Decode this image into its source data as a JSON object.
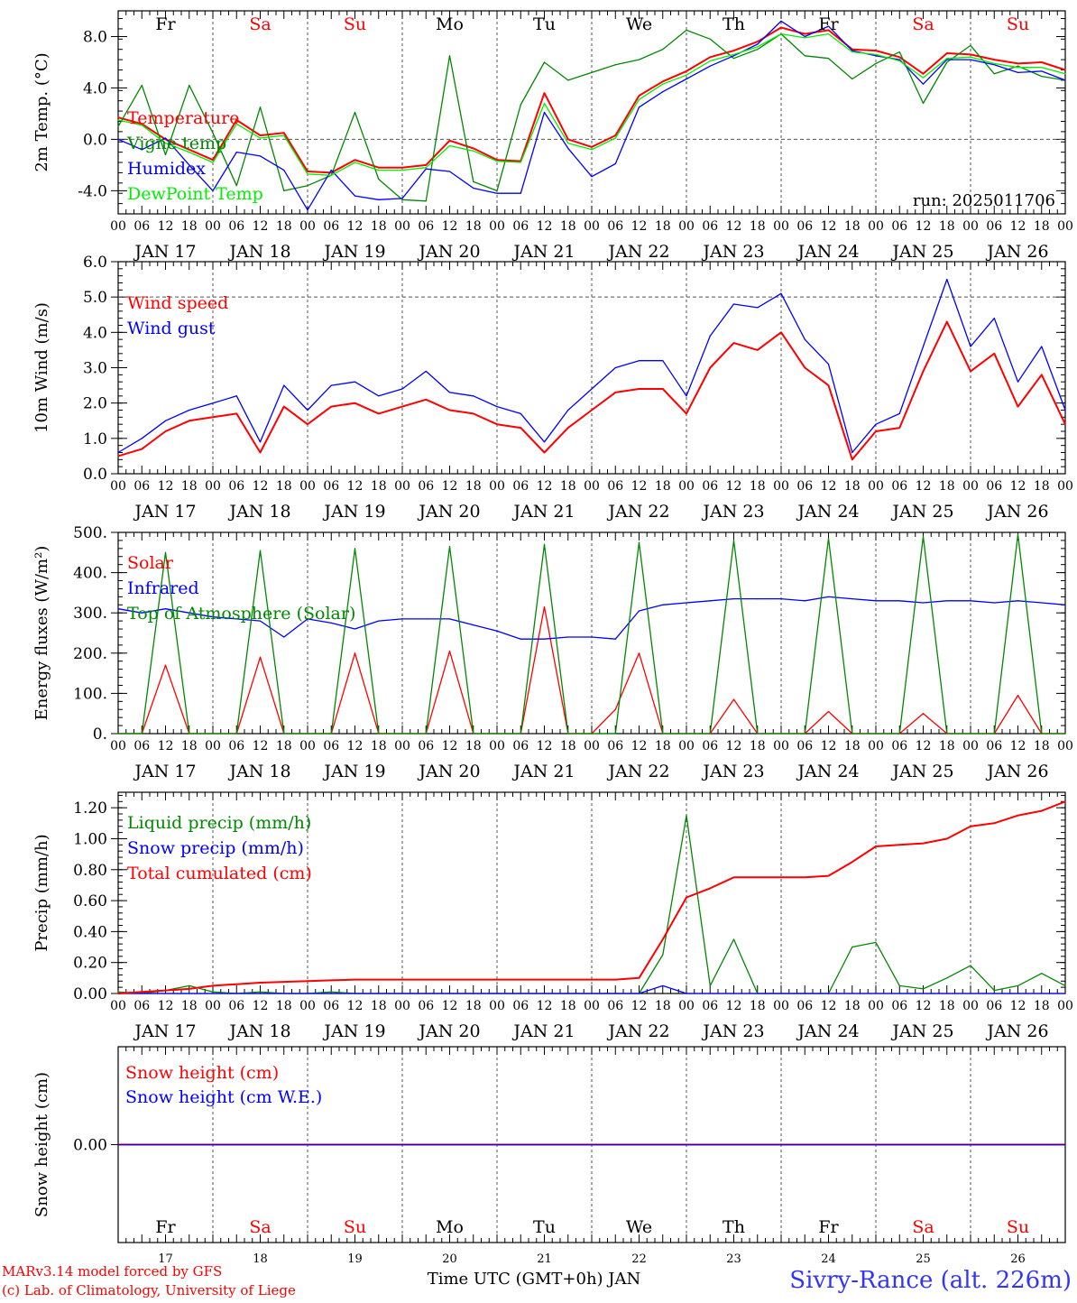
{
  "colors": {
    "red": "#ff0000",
    "green": "#008800",
    "blue": "#0000ff",
    "lime": "#00ee00",
    "grey": "#555555",
    "site": "#3333ff"
  },
  "weekdays": [
    "Fr",
    "Sa",
    "Su",
    "Mo",
    "Tu",
    "We",
    "Th",
    "Fr",
    "Sa",
    "Su"
  ],
  "weekday_red": [
    false,
    true,
    true,
    false,
    false,
    false,
    false,
    false,
    true,
    true
  ],
  "day_labels": [
    "JAN 17",
    "JAN 18",
    "JAN 19",
    "JAN 20",
    "JAN 21",
    "JAN 22",
    "JAN 23",
    "JAN 24",
    "JAN 25",
    "JAN 26"
  ],
  "day_numbers": [
    "17",
    "18",
    "19",
    "20",
    "21",
    "22",
    "23",
    "24",
    "25",
    "26"
  ],
  "hour_labels": [
    "00",
    "06",
    "12",
    "18"
  ],
  "hour_end_label": "00",
  "footer": {
    "model_line": "MARv3.14 model forced by GFS",
    "lab_line": "(c) Lab. of Climatology, University of Liege",
    "xlabel": "Time UTC (GMT+0h) JAN",
    "site": "Sivry-Rance (alt. 226m)"
  },
  "chart_data": [
    {
      "type": "line",
      "ylabel": "2m Temp. (°C)",
      "yticks": [
        "-4.0",
        "0.0",
        "4.0",
        "8.0"
      ],
      "ylim": [
        -5.8,
        10.0
      ],
      "dashed_ref": [
        0.0
      ],
      "run_label": "run: 2025011706",
      "x_hours": [
        0,
        6,
        12,
        18,
        24,
        30,
        36,
        42,
        48,
        54,
        60,
        66,
        72,
        78,
        84,
        90,
        96,
        102,
        108,
        114,
        120,
        126,
        132,
        138,
        144,
        150,
        156,
        162,
        168,
        174,
        180,
        186,
        192,
        198,
        204,
        210,
        216,
        222,
        228,
        234,
        240
      ],
      "series": [
        {
          "name": "Temperature",
          "color": "red",
          "values": [
            1.7,
            1.2,
            0.0,
            -0.8,
            -1.6,
            1.5,
            0.3,
            0.5,
            -2.5,
            -2.6,
            -1.6,
            -2.2,
            -2.2,
            -2.0,
            -0.1,
            -0.7,
            -1.6,
            -1.7,
            3.6,
            0.0,
            -0.6,
            0.3,
            3.4,
            4.5,
            5.3,
            6.4,
            6.9,
            7.6,
            8.7,
            8.2,
            8.5,
            7.0,
            6.9,
            6.4,
            5.1,
            6.7,
            6.6,
            6.2,
            5.9,
            6.0,
            5.4
          ]
        },
        {
          "name": "Vigne temp",
          "color": "green",
          "values": [
            1.0,
            4.2,
            -1.2,
            4.2,
            0.5,
            -3.6,
            2.5,
            -4.0,
            -3.6,
            -2.8,
            2.1,
            -3.1,
            -4.7,
            -4.8,
            6.5,
            -3.3,
            -4.0,
            2.7,
            6.0,
            4.6,
            5.2,
            5.8,
            6.2,
            7.0,
            8.5,
            7.8,
            6.3,
            7.0,
            8.2,
            6.5,
            6.3,
            4.7,
            5.9,
            6.8,
            2.8,
            6.0,
            7.3,
            5.1,
            5.7,
            4.9,
            4.6
          ]
        },
        {
          "name": "Humidex",
          "color": "blue",
          "values": [
            0.0,
            -0.8,
            0.1,
            -2.0,
            -4.0,
            -1.0,
            -1.3,
            -2.4,
            -5.5,
            -2.4,
            -4.4,
            -4.7,
            -4.6,
            -2.3,
            -2.5,
            -3.8,
            -4.2,
            -4.2,
            2.1,
            -0.7,
            -2.9,
            -1.9,
            2.5,
            3.7,
            4.7,
            5.7,
            6.5,
            7.4,
            9.2,
            8.0,
            8.8,
            6.9,
            6.5,
            6.2,
            4.3,
            6.2,
            6.2,
            5.8,
            5.2,
            5.3,
            4.6
          ]
        },
        {
          "name": "DewPoint Temp",
          "color": "lime",
          "values": [
            1.5,
            1.1,
            -0.3,
            -1.0,
            -1.8,
            1.2,
            0.1,
            0.3,
            -2.7,
            -2.8,
            -1.8,
            -2.4,
            -2.4,
            -2.2,
            -0.5,
            -0.9,
            -1.7,
            -1.8,
            2.8,
            -0.3,
            -0.8,
            0.1,
            3.1,
            4.3,
            5.0,
            6.1,
            6.6,
            7.2,
            8.2,
            7.9,
            8.2,
            6.8,
            6.6,
            6.1,
            4.8,
            6.3,
            6.4,
            5.9,
            5.6,
            5.6,
            5.1
          ]
        }
      ]
    },
    {
      "type": "line",
      "ylabel": "10m Wind (m/s)",
      "yticks": [
        "0.0",
        "1.0",
        "2.0",
        "3.0",
        "4.0",
        "5.0",
        "6.0"
      ],
      "ylim": [
        0,
        6.0
      ],
      "dashed_ref": [
        5.0
      ],
      "x_hours": [
        0,
        6,
        12,
        18,
        24,
        30,
        36,
        42,
        48,
        54,
        60,
        66,
        72,
        78,
        84,
        90,
        96,
        102,
        108,
        114,
        120,
        126,
        132,
        138,
        144,
        150,
        156,
        162,
        168,
        174,
        180,
        186,
        192,
        198,
        204,
        210,
        216,
        222,
        228,
        234,
        240
      ],
      "series": [
        {
          "name": "Wind speed",
          "color": "red",
          "values": [
            0.5,
            0.7,
            1.2,
            1.5,
            1.6,
            1.7,
            0.6,
            1.9,
            1.4,
            1.9,
            2.0,
            1.7,
            1.9,
            2.1,
            1.8,
            1.7,
            1.4,
            1.3,
            0.6,
            1.3,
            1.8,
            2.3,
            2.4,
            2.4,
            1.7,
            3.0,
            3.7,
            3.5,
            4.0,
            3.0,
            2.5,
            0.4,
            1.2,
            1.3,
            2.9,
            4.3,
            2.9,
            3.4,
            1.9,
            2.8,
            1.4
          ]
        },
        {
          "name": "Wind gust",
          "color": "blue",
          "values": [
            0.6,
            1.0,
            1.5,
            1.8,
            2.0,
            2.2,
            0.9,
            2.5,
            1.8,
            2.5,
            2.6,
            2.2,
            2.4,
            2.9,
            2.3,
            2.2,
            1.9,
            1.7,
            0.9,
            1.8,
            2.4,
            3.0,
            3.2,
            3.2,
            2.2,
            3.9,
            4.8,
            4.7,
            5.1,
            3.8,
            3.1,
            0.6,
            1.4,
            1.7,
            3.6,
            5.5,
            3.6,
            4.4,
            2.6,
            3.6,
            1.8
          ]
        }
      ]
    },
    {
      "type": "line",
      "ylabel": "Energy fluxes (W/m²)",
      "yticks": [
        "0.",
        "100.",
        "200.",
        "300.",
        "400.",
        "500."
      ],
      "ylim": [
        0,
        500
      ],
      "x_hours": [
        0,
        6,
        12,
        18,
        24,
        30,
        36,
        42,
        48,
        54,
        60,
        66,
        72,
        78,
        84,
        90,
        96,
        102,
        108,
        114,
        120,
        126,
        132,
        138,
        144,
        150,
        156,
        162,
        168,
        174,
        180,
        186,
        192,
        198,
        204,
        210,
        216,
        222,
        228,
        234,
        240
      ],
      "series": [
        {
          "name": "Solar",
          "color": "red",
          "values": [
            0,
            0,
            170,
            0,
            0,
            0,
            190,
            0,
            0,
            0,
            200,
            0,
            0,
            0,
            205,
            0,
            0,
            0,
            315,
            0,
            0,
            60,
            200,
            0,
            0,
            0,
            85,
            0,
            0,
            0,
            55,
            0,
            0,
            0,
            50,
            0,
            0,
            0,
            95,
            0,
            0
          ]
        },
        {
          "name": "Infrared",
          "color": "blue",
          "values": [
            310,
            300,
            310,
            300,
            290,
            285,
            280,
            240,
            285,
            275,
            260,
            280,
            285,
            285,
            285,
            270,
            255,
            235,
            235,
            240,
            240,
            235,
            305,
            320,
            325,
            330,
            335,
            335,
            335,
            330,
            340,
            335,
            330,
            330,
            325,
            330,
            330,
            325,
            330,
            325,
            320
          ]
        },
        {
          "name": "Top of Atmosphere (Solar)",
          "color": "green",
          "values": [
            0,
            0,
            450,
            0,
            0,
            0,
            455,
            0,
            0,
            0,
            460,
            0,
            0,
            0,
            465,
            0,
            0,
            0,
            470,
            0,
            0,
            0,
            475,
            0,
            0,
            0,
            480,
            0,
            0,
            0,
            485,
            0,
            0,
            0,
            490,
            0,
            0,
            0,
            495,
            0,
            0
          ]
        }
      ]
    },
    {
      "type": "line",
      "ylabel": "Precip (mm/h)",
      "yticks": [
        "0.00",
        "0.20",
        "0.40",
        "0.60",
        "0.80",
        "1.00",
        "1.20"
      ],
      "ylim": [
        0,
        1.3
      ],
      "x_hours": [
        0,
        6,
        12,
        18,
        24,
        30,
        36,
        42,
        48,
        54,
        60,
        66,
        72,
        78,
        84,
        90,
        96,
        102,
        108,
        114,
        120,
        126,
        132,
        138,
        144,
        150,
        156,
        162,
        168,
        174,
        180,
        186,
        192,
        198,
        204,
        210,
        216,
        222,
        228,
        234,
        240
      ],
      "series": [
        {
          "name": "Liquid precip (mm/h)",
          "color": "green",
          "values": [
            0.01,
            0.0,
            0.02,
            0.05,
            0.01,
            0.0,
            0.01,
            0.0,
            0.0,
            0.01,
            0.0,
            0.0,
            0.0,
            0.0,
            0.0,
            0.0,
            0.0,
            0.0,
            0.0,
            0.0,
            0.0,
            0.0,
            0.0,
            0.25,
            1.15,
            0.05,
            0.35,
            0.0,
            0.0,
            0.0,
            0.0,
            0.3,
            0.33,
            0.05,
            0.03,
            0.1,
            0.18,
            0.02,
            0.05,
            0.13,
            0.05
          ]
        },
        {
          "name": "Snow precip (mm/h)",
          "color": "blue",
          "values": [
            0.0,
            0.0,
            0.0,
            0.0,
            0.0,
            0.0,
            0.0,
            0.0,
            0.0,
            0.0,
            0.0,
            0.0,
            0.0,
            0.0,
            0.0,
            0.0,
            0.0,
            0.0,
            0.0,
            0.0,
            0.0,
            0.0,
            0.0,
            0.05,
            0.0,
            0.0,
            0.0,
            0.0,
            0.0,
            0.0,
            0.0,
            0.0,
            0.0,
            0.0,
            0.0,
            0.0,
            0.0,
            0.0,
            0.0,
            0.0,
            0.0
          ]
        },
        {
          "name": "Total cumulated (cm)",
          "color": "red",
          "values": [
            0.0,
            0.01,
            0.02,
            0.03,
            0.05,
            0.06,
            0.07,
            0.075,
            0.08,
            0.085,
            0.09,
            0.09,
            0.09,
            0.09,
            0.09,
            0.09,
            0.09,
            0.09,
            0.09,
            0.09,
            0.09,
            0.09,
            0.1,
            0.35,
            0.62,
            0.68,
            0.75,
            0.75,
            0.75,
            0.75,
            0.76,
            0.85,
            0.95,
            0.96,
            0.97,
            1.0,
            1.08,
            1.1,
            1.15,
            1.18,
            1.24
          ]
        }
      ]
    },
    {
      "type": "line",
      "ylabel": "Snow height (cm)",
      "yticks": [
        "0.00"
      ],
      "ylim": [
        -1,
        1
      ],
      "x_hours": [
        0,
        240
      ],
      "series": [
        {
          "name": "Snow height (cm)",
          "color": "red",
          "values": [
            0.0,
            0.0
          ]
        },
        {
          "name": "Snow height (cm W.E.)",
          "color": "blue",
          "values": [
            0.0,
            0.0
          ]
        }
      ]
    }
  ]
}
